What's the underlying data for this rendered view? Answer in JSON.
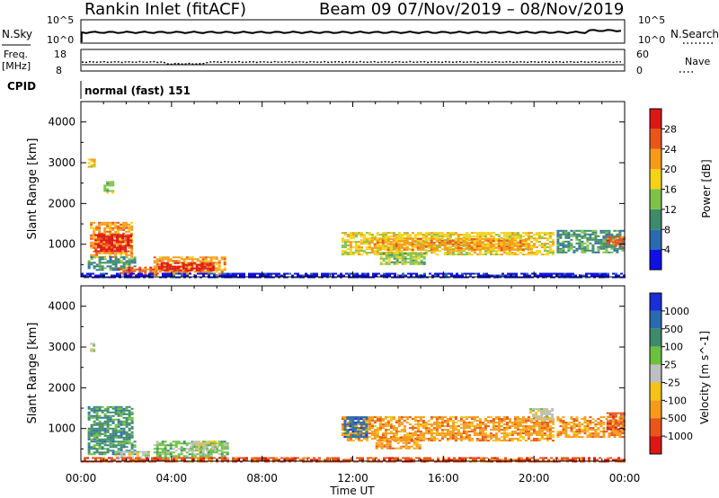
{
  "header": {
    "station": "Rankin Inlet (fitACF)",
    "beam": "Beam 09",
    "dates": "07/Nov/2019 – 08/Nov/2019"
  },
  "status_panels": {
    "nsky_label": "N.Sky",
    "nsky_ticks": [
      "10^5",
      "10^0"
    ],
    "nsearch_label": "N.Search",
    "nsearch_ticks": [
      "10^5",
      "10^0"
    ],
    "freq_label_1": "Freq.",
    "freq_label_2": "[MHz]",
    "freq_ticks": [
      "18",
      "8"
    ],
    "nave_label": "Nave",
    "nave_ticks": [
      "60",
      "0"
    ],
    "cpid_label": "CPID",
    "cpid_value": "normal (fast) 151"
  },
  "chart_data": [
    {
      "type": "heatmap",
      "title": "",
      "xlabel": "",
      "ylabel": "Slant Range [km]",
      "x_ticks": [
        "00:00",
        "04:00",
        "08:00",
        "12:00",
        "16:00",
        "20:00",
        "00:00"
      ],
      "y_ticks": [
        "1000",
        "2000",
        "3000",
        "4000"
      ],
      "ylim": [
        200,
        4500
      ],
      "colorbar_label": "Power [dB]",
      "colorbar_ticks": [
        "4",
        "8",
        "12",
        "16",
        "20",
        "24",
        "28"
      ],
      "colors": [
        "#1010e6",
        "#2a6bb0",
        "#3e8a6a",
        "#7fc24b",
        "#f5d21a",
        "#f59b1a",
        "#e8561c",
        "#dd1616"
      ],
      "regions": [
        {
          "t0": 0.4,
          "t1": 2.3,
          "r0": 700,
          "r1": 1550,
          "level": 5
        },
        {
          "t0": 0.6,
          "t1": 2.2,
          "r0": 850,
          "r1": 1250,
          "level": 7
        },
        {
          "t0": 0.3,
          "t1": 2.4,
          "r0": 380,
          "r1": 700,
          "level": 2
        },
        {
          "t0": 1.6,
          "t1": 3.3,
          "r0": 250,
          "r1": 450,
          "level": 6
        },
        {
          "t0": 3.2,
          "t1": 6.3,
          "r0": 300,
          "r1": 700,
          "level": 5
        },
        {
          "t0": 3.4,
          "t1": 5.8,
          "r0": 380,
          "r1": 560,
          "level": 7
        },
        {
          "t0": 0.3,
          "t1": 0.6,
          "r0": 2900,
          "r1": 3100,
          "level": 4
        },
        {
          "t0": 1.0,
          "t1": 1.4,
          "r0": 2250,
          "r1": 2550,
          "level": 3
        },
        {
          "t0": 11.5,
          "t1": 20.8,
          "r0": 750,
          "r1": 1300,
          "level": 4
        },
        {
          "t0": 12.8,
          "t1": 19.8,
          "r0": 850,
          "r1": 1150,
          "level": 5
        },
        {
          "t0": 13.2,
          "t1": 15.2,
          "r0": 500,
          "r1": 800,
          "level": 3
        },
        {
          "t0": 21.0,
          "t1": 23.9,
          "r0": 800,
          "r1": 1350,
          "level": 2
        },
        {
          "t0": 23.2,
          "t1": 24.0,
          "r0": 950,
          "r1": 1200,
          "level": 6
        },
        {
          "t0": 0.0,
          "t1": 24.0,
          "r0": 180,
          "r1": 300,
          "level": 0
        }
      ]
    },
    {
      "type": "heatmap",
      "title": "",
      "xlabel": "Time UT",
      "ylabel": "Slant Range [km]",
      "x_ticks": [
        "00:00",
        "04:00",
        "08:00",
        "12:00",
        "16:00",
        "20:00",
        "00:00"
      ],
      "y_ticks": [
        "1000",
        "2000",
        "3000",
        "4000"
      ],
      "ylim": [
        200,
        4500
      ],
      "colorbar_label": "Velocity [m s^-1]",
      "colorbar_ticks": [
        "1000",
        "500",
        "100",
        "25",
        "-25",
        "-100",
        "-500",
        "-1000"
      ],
      "colors": [
        "#1a2fd6",
        "#2a6bb0",
        "#3e8a6a",
        "#6cc040",
        "#bfbfbf",
        "#f5c21a",
        "#f59b1a",
        "#e8561c",
        "#dd1616"
      ],
      "regions": [
        {
          "t0": 0.3,
          "t1": 2.3,
          "r0": 700,
          "r1": 1550,
          "level": 2
        },
        {
          "t0": 0.3,
          "t1": 2.4,
          "r0": 350,
          "r1": 700,
          "level": 2
        },
        {
          "t0": 1.5,
          "t1": 3.0,
          "r0": 250,
          "r1": 450,
          "level": 4
        },
        {
          "t0": 3.2,
          "t1": 6.5,
          "r0": 300,
          "r1": 700,
          "level": 3
        },
        {
          "t0": 4.8,
          "t1": 6.0,
          "r0": 450,
          "r1": 700,
          "level": 4
        },
        {
          "t0": 0.4,
          "t1": 0.6,
          "r0": 2900,
          "r1": 3100,
          "level": 4
        },
        {
          "t0": 11.5,
          "t1": 20.8,
          "r0": 700,
          "r1": 1300,
          "level": 6
        },
        {
          "t0": 11.6,
          "t1": 12.6,
          "r0": 800,
          "r1": 1300,
          "level": 1
        },
        {
          "t0": 13.0,
          "t1": 15.0,
          "r0": 500,
          "r1": 800,
          "level": 6
        },
        {
          "t0": 19.8,
          "t1": 20.8,
          "r0": 1200,
          "r1": 1500,
          "level": 4
        },
        {
          "t0": 21.0,
          "t1": 23.9,
          "r0": 800,
          "r1": 1300,
          "level": 6
        },
        {
          "t0": 23.2,
          "t1": 24.0,
          "r0": 1000,
          "r1": 1400,
          "level": 7
        },
        {
          "t0": 0.0,
          "t1": 24.0,
          "r0": 180,
          "r1": 300,
          "level": 7
        }
      ]
    }
  ]
}
